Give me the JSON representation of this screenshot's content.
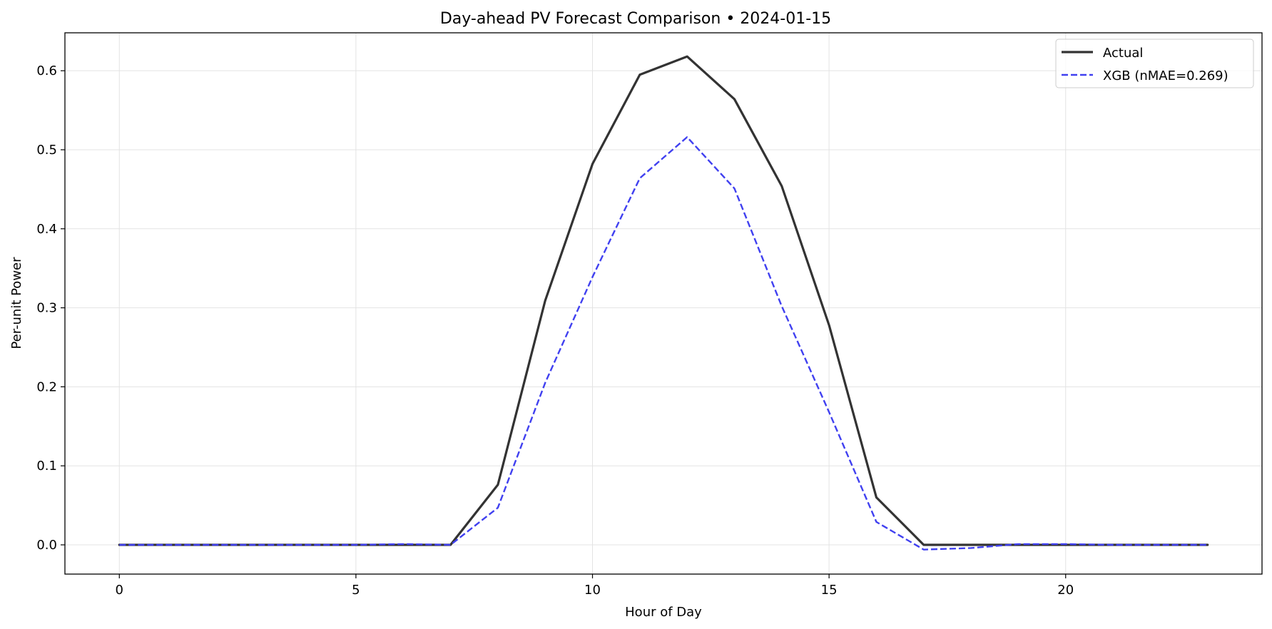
{
  "chart_data": {
    "type": "line",
    "title": "Day-ahead PV Forecast Comparison • 2024-01-15",
    "xlabel": "Hour of Day",
    "ylabel": "Per-unit Power",
    "xlim": [
      -1.15,
      24.15
    ],
    "ylim": [
      -0.037,
      0.648
    ],
    "xticks": [
      0,
      5,
      10,
      15,
      20
    ],
    "xtick_labels": [
      "0",
      "5",
      "10",
      "15",
      "20"
    ],
    "yticks": [
      0.0,
      0.1,
      0.2,
      0.3,
      0.4,
      0.5,
      0.6
    ],
    "ytick_labels": [
      "0.0",
      "0.1",
      "0.2",
      "0.3",
      "0.4",
      "0.5",
      "0.6"
    ],
    "grid": true,
    "legend_position": "upper right",
    "x": [
      0,
      1,
      2,
      3,
      4,
      5,
      6,
      7,
      8,
      9,
      10,
      11,
      12,
      13,
      14,
      15,
      16,
      17,
      18,
      19,
      20,
      21,
      22,
      23
    ],
    "series": [
      {
        "name": "Actual",
        "color": "#333333",
        "style": "solid",
        "values": [
          0,
          0,
          0,
          0,
          0,
          0,
          0,
          0,
          0.076,
          0.309,
          0.482,
          0.595,
          0.618,
          0.564,
          0.454,
          0.278,
          0.06,
          0,
          0,
          0,
          0,
          0,
          0,
          0
        ]
      },
      {
        "name": "XGB (nMAE=0.269)",
        "color": "#4040f0",
        "style": "dashed",
        "values": [
          0,
          0,
          0,
          0,
          0,
          0,
          0.001,
          0,
          0.047,
          0.205,
          0.339,
          0.464,
          0.516,
          0.451,
          0.302,
          0.168,
          0.029,
          -0.006,
          -0.004,
          0.001,
          0.001,
          0,
          0,
          0
        ]
      }
    ]
  }
}
